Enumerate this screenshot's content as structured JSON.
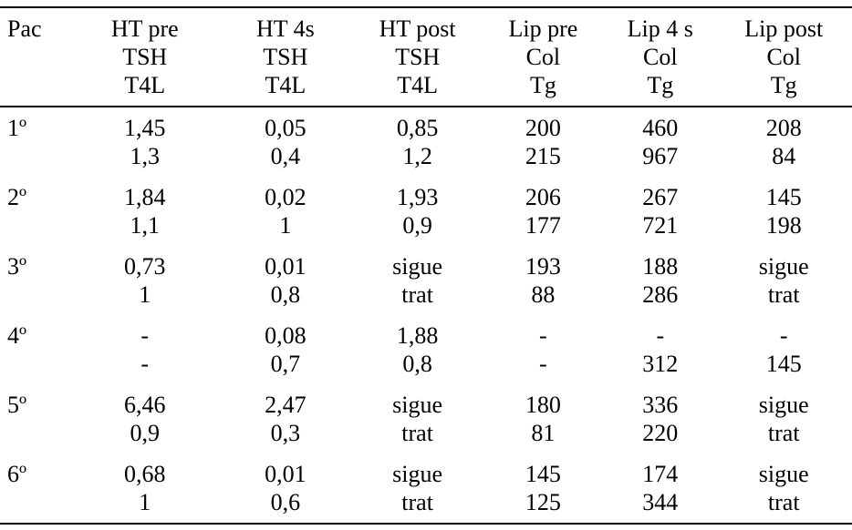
{
  "table": {
    "header": [
      {
        "lines": [
          "Pac"
        ]
      },
      {
        "lines": [
          "HT pre",
          "TSH",
          "T4L"
        ]
      },
      {
        "lines": [
          "HT 4s",
          "TSH",
          "T4L"
        ]
      },
      {
        "lines": [
          "HT post",
          "TSH",
          "T4L"
        ]
      },
      {
        "lines": [
          "Lip pre",
          "Col",
          "Tg"
        ]
      },
      {
        "lines": [
          "Lip 4 s",
          "Col",
          "Tg"
        ]
      },
      {
        "lines": [
          "Lip post",
          "Col",
          "Tg"
        ]
      }
    ],
    "rows": [
      {
        "pac": "1º",
        "cells": [
          [
            "1,45",
            "1,3"
          ],
          [
            "0,05",
            "0,4"
          ],
          [
            "0,85",
            "1,2"
          ],
          [
            "200",
            "215"
          ],
          [
            "460",
            "967"
          ],
          [
            "208",
            "84"
          ]
        ]
      },
      {
        "pac": "2º",
        "cells": [
          [
            "1,84",
            "1,1"
          ],
          [
            "0,02",
            "1"
          ],
          [
            "1,93",
            "0,9"
          ],
          [
            "206",
            "177"
          ],
          [
            "267",
            "721"
          ],
          [
            "145",
            "198"
          ]
        ]
      },
      {
        "pac": "3º",
        "cells": [
          [
            "0,73",
            "1"
          ],
          [
            "0,01",
            "0,8"
          ],
          [
            "sigue",
            "trat"
          ],
          [
            "193",
            "88"
          ],
          [
            "188",
            "286"
          ],
          [
            "sigue",
            "trat"
          ]
        ]
      },
      {
        "pac": "4º",
        "cells": [
          [
            "-",
            "-"
          ],
          [
            "0,08",
            "0,7"
          ],
          [
            "1,88",
            "0,8"
          ],
          [
            "-",
            "-"
          ],
          [
            "-",
            "312"
          ],
          [
            "-",
            "145"
          ]
        ]
      },
      {
        "pac": "5º",
        "cells": [
          [
            "6,46",
            "0,9"
          ],
          [
            "2,47",
            "0,3"
          ],
          [
            "sigue",
            "trat"
          ],
          [
            "180",
            "81"
          ],
          [
            "336",
            "220"
          ],
          [
            "sigue",
            "trat"
          ]
        ]
      },
      {
        "pac": "6º",
        "cells": [
          [
            "0,68",
            "1"
          ],
          [
            "0,01",
            "0,6"
          ],
          [
            "sigue",
            "trat"
          ],
          [
            "145",
            "125"
          ],
          [
            "174",
            "344"
          ],
          [
            "sigue",
            "trat"
          ]
        ]
      }
    ]
  }
}
